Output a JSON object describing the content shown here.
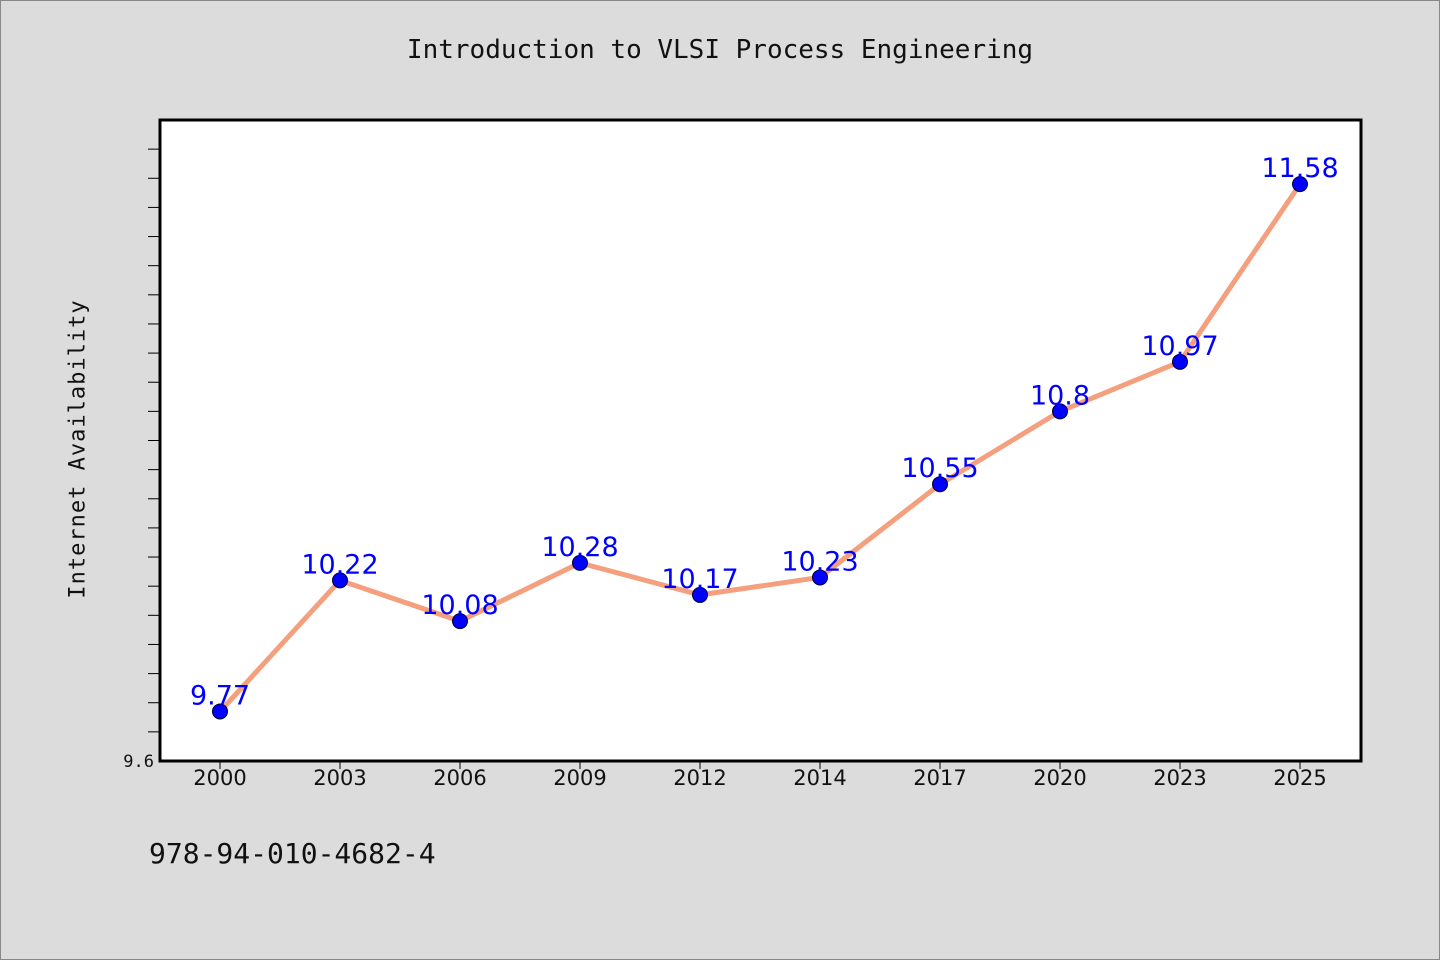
{
  "chart_data": {
    "type": "line",
    "title": "Introduction to VLSI Process Engineering",
    "xlabel": "",
    "ylabel": "Internet Availability",
    "categories": [
      "2000",
      "2003",
      "2006",
      "2009",
      "2012",
      "2014",
      "2017",
      "2020",
      "2023",
      "2025"
    ],
    "series": [
      {
        "values": [
          9.77,
          10.22,
          10.08,
          10.28,
          10.17,
          10.23,
          10.55,
          10.8,
          10.97,
          11.58
        ],
        "labels": [
          "9.77",
          "10.22",
          "10.08",
          "10.28",
          "10.17",
          "10.23",
          "10.55",
          "10.8",
          "10.97",
          "11.58"
        ]
      }
    ],
    "y_tick_labels": [
      "9.6"
    ],
    "ylim": [
      9.6,
      11.8
    ],
    "grid": false,
    "legend": "none",
    "colors": {
      "line": "#f4a07e",
      "marker": "#0000ff",
      "label": "#0000ff",
      "plot_background": "#ffffff",
      "page_background": "#dcdcdc"
    }
  },
  "footnote": "978-94-010-4682-4"
}
